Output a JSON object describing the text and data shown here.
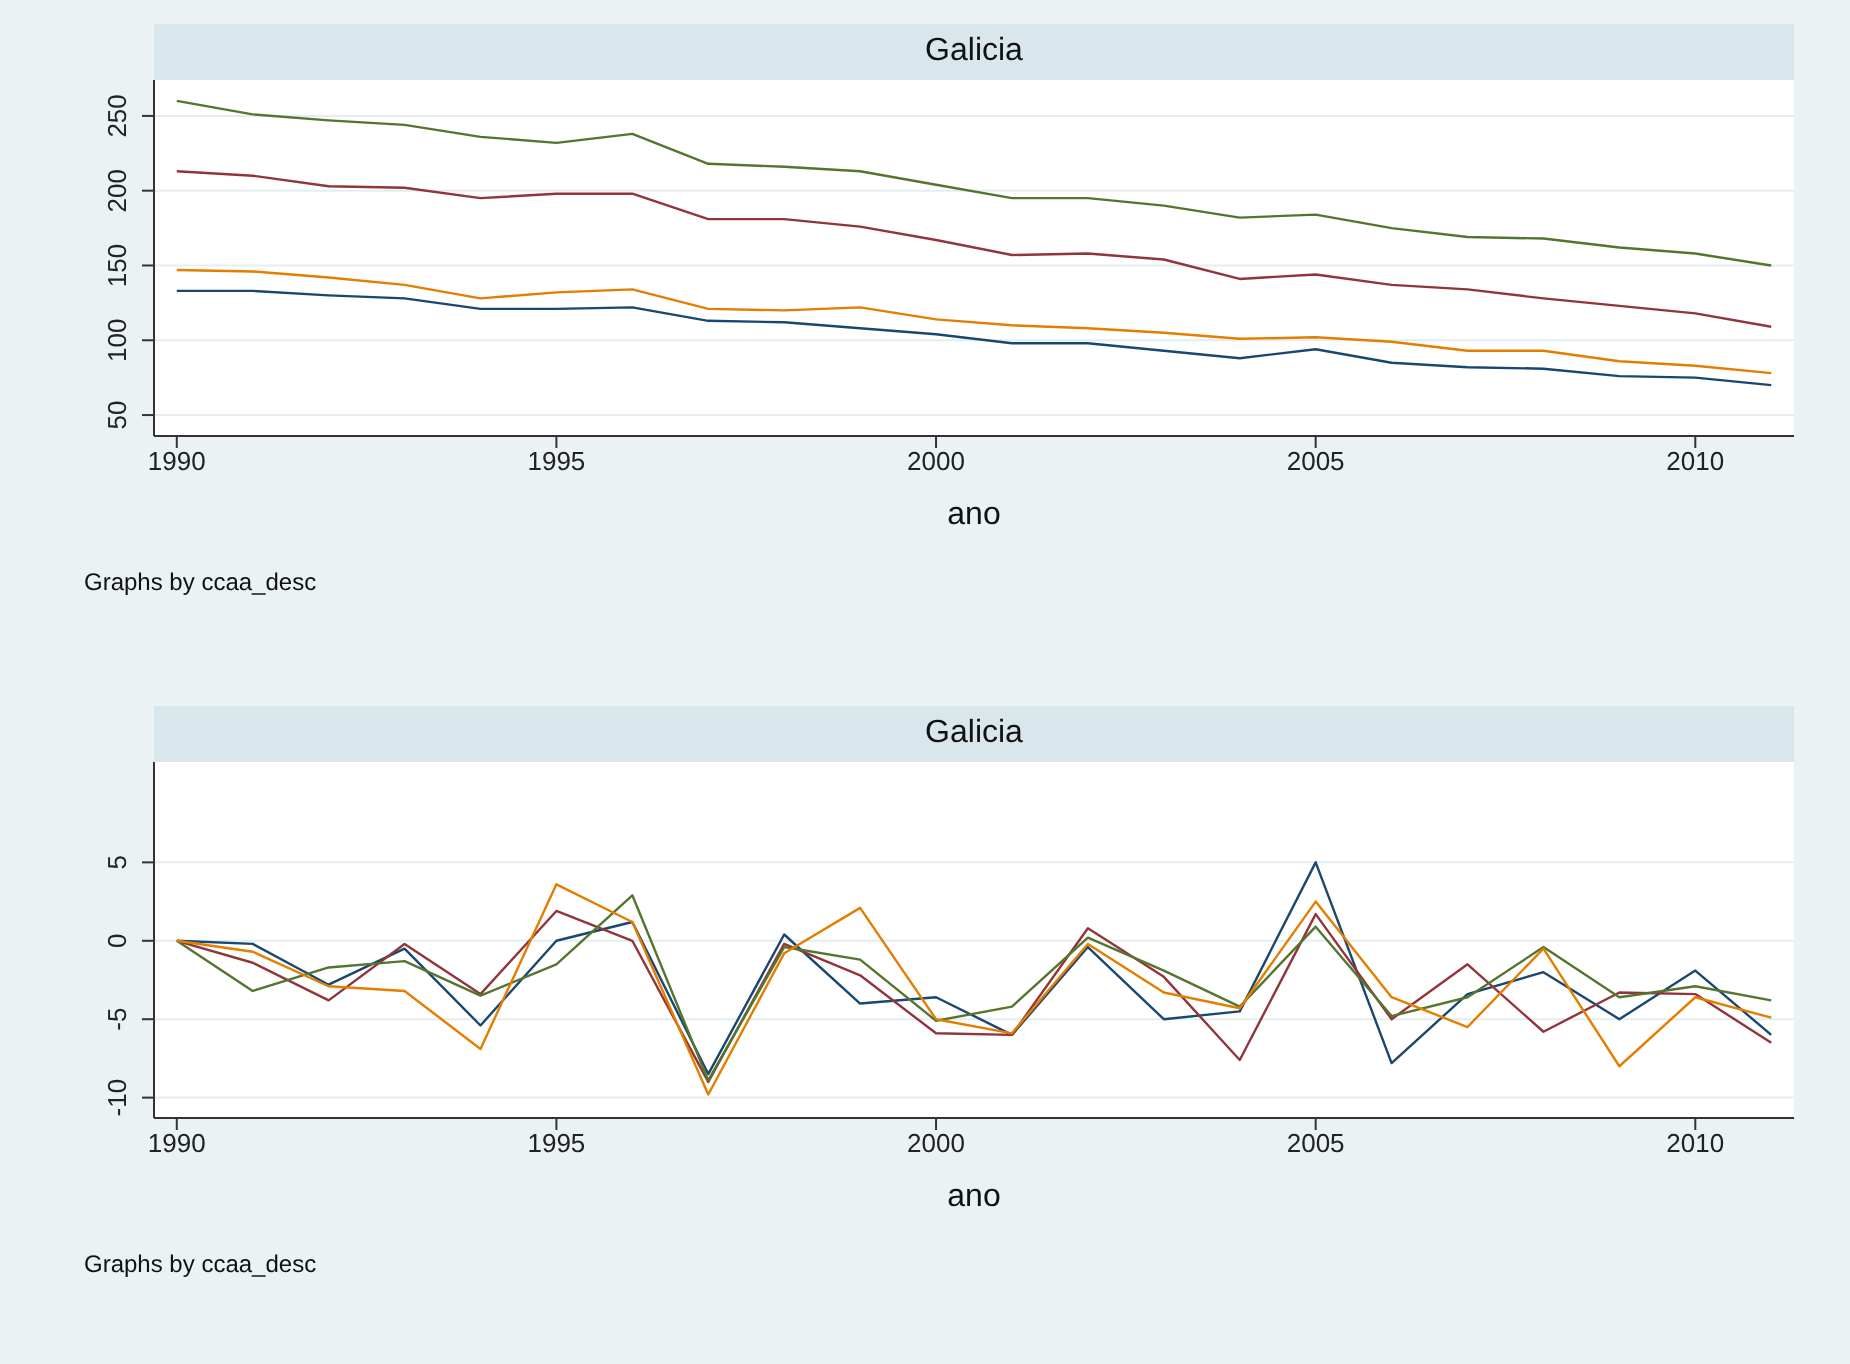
{
  "chart_data": [
    {
      "type": "line",
      "title": "Galicia",
      "xlabel": "ano",
      "annotations": [
        "Graphs by ccaa_desc"
      ],
      "grid": "y",
      "line_style": "solid",
      "x": [
        1990,
        1991,
        1992,
        1993,
        1994,
        1995,
        1996,
        1997,
        1998,
        1999,
        2000,
        2001,
        2002,
        2003,
        2004,
        2005,
        2006,
        2007,
        2008,
        2009,
        2010,
        2011
      ],
      "xlim": [
        1989.7,
        2011.3
      ],
      "xticks": [
        1990,
        1995,
        2000,
        2005,
        2010
      ],
      "ylim": [
        36,
        274
      ],
      "yticks": [
        50,
        100,
        150,
        200,
        250
      ],
      "series": [
        {
          "color": "#1a476f",
          "values": [
            133,
            133,
            130,
            128,
            121,
            121,
            122,
            113,
            112,
            108,
            104,
            98,
            98,
            93,
            88,
            94,
            85,
            82,
            81,
            76,
            75,
            70
          ]
        },
        {
          "color": "#90353b",
          "values": [
            213,
            210,
            203,
            202,
            195,
            198,
            198,
            181,
            181,
            176,
            167,
            157,
            158,
            154,
            141,
            144,
            137,
            134,
            128,
            123,
            118,
            109
          ]
        },
        {
          "color": "#55752f",
          "values": [
            260,
            251,
            247,
            244,
            236,
            232,
            238,
            218,
            216,
            213,
            204,
            195,
            195,
            190,
            182,
            184,
            175,
            169,
            168,
            162,
            158,
            150
          ]
        },
        {
          "color": "#e37e00",
          "values": [
            147,
            146,
            142,
            137,
            128,
            132,
            134,
            121,
            120,
            122,
            114,
            110,
            108,
            105,
            101,
            102,
            99,
            93,
            93,
            86,
            83,
            78
          ]
        }
      ]
    },
    {
      "type": "line",
      "title": "Galicia",
      "xlabel": "ano",
      "annotations": [
        "Graphs by ccaa_desc"
      ],
      "grid": "y",
      "line_style": "solid",
      "x": [
        1990,
        1991,
        1992,
        1993,
        1994,
        1995,
        1996,
        1997,
        1998,
        1999,
        2000,
        2001,
        2002,
        2003,
        2004,
        2005,
        2006,
        2007,
        2008,
        2009,
        2010,
        2011
      ],
      "xlim": [
        1989.7,
        2011.3
      ],
      "xticks": [
        1990,
        1995,
        2000,
        2005,
        2010
      ],
      "ylim": [
        -11.3,
        11.4
      ],
      "yticks": [
        -10,
        -5,
        0,
        5
      ],
      "series": [
        {
          "color": "#1a476f",
          "values": [
            0,
            -0.2,
            -2.8,
            -0.5,
            -5.4,
            0,
            1.2,
            -8.5,
            0.4,
            -4,
            -3.6,
            -6,
            -0.4,
            -5,
            -4.5,
            5,
            -7.8,
            -3.4,
            -2,
            -5,
            -1.9,
            -6
          ]
        },
        {
          "color": "#90353b",
          "values": [
            0,
            -1.4,
            -3.8,
            -0.2,
            -3.4,
            1.9,
            0,
            -9,
            -0.2,
            -2.2,
            -5.9,
            -6,
            0.8,
            -2.3,
            -7.6,
            1.7,
            -5,
            -1.5,
            -5.8,
            -3.3,
            -3.4,
            -6.5
          ]
        },
        {
          "color": "#55752f",
          "values": [
            0,
            -3.2,
            -1.7,
            -1.3,
            -3.5,
            -1.5,
            2.9,
            -8.9,
            -0.4,
            -1.2,
            -5.1,
            -4.2,
            0.2,
            -1.9,
            -4.2,
            0.9,
            -4.8,
            -3.6,
            -0.4,
            -3.6,
            -2.9,
            -3.8
          ]
        },
        {
          "color": "#e37e00",
          "values": [
            0,
            -0.7,
            -2.9,
            -3.2,
            -6.9,
            3.6,
            1.2,
            -9.8,
            -0.8,
            2.1,
            -5,
            -5.9,
            -0.2,
            -3.3,
            -4.3,
            2.5,
            -3.6,
            -5.5,
            -0.5,
            -8,
            -3.6,
            -4.9
          ]
        }
      ]
    }
  ]
}
